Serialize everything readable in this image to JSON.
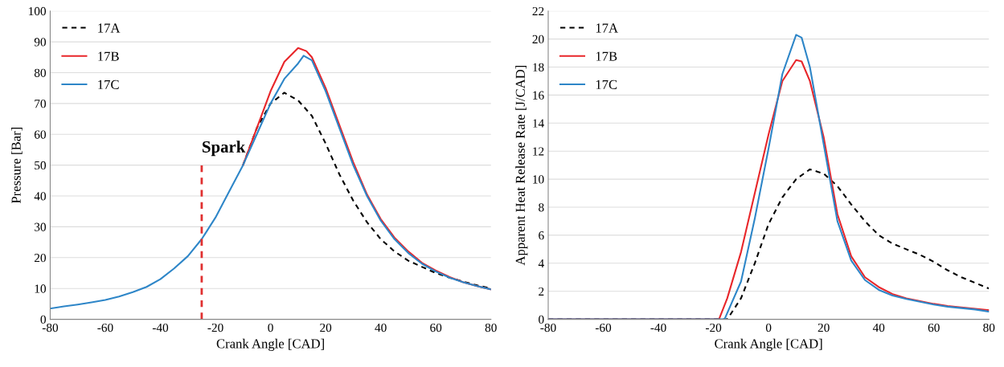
{
  "chart_data": [
    {
      "type": "line",
      "xlabel": "Crank Angle [CAD]",
      "ylabel": "Pressure [Bar]",
      "xlim": [
        -80,
        80
      ],
      "xticks": [
        -80,
        -60,
        -40,
        -20,
        0,
        20,
        40,
        60,
        80
      ],
      "ylim": [
        0,
        100
      ],
      "yticks": [
        0,
        10,
        20,
        30,
        40,
        50,
        60,
        70,
        80,
        90,
        100
      ],
      "grid": "y",
      "legend": "top left",
      "series": [
        {
          "name": "17A",
          "color": "#000000",
          "line_style": "dashed",
          "x": [
            -10,
            -5,
            0,
            5,
            10,
            15,
            20,
            25,
            30,
            35,
            40,
            45,
            50,
            55,
            60,
            65,
            70,
            75,
            80
          ],
          "values": [
            50,
            62,
            70,
            73.5,
            71,
            66,
            57,
            47,
            38.5,
            31.5,
            26,
            22,
            19,
            17,
            15,
            13.5,
            12.2,
            11,
            10
          ]
        },
        {
          "name": "17B",
          "color": "#e8262a",
          "line_style": "solid",
          "x": [
            -10,
            -5,
            0,
            5,
            10,
            13,
            15,
            20,
            25,
            30,
            35,
            40,
            45,
            50,
            55,
            60,
            65,
            70,
            75,
            80
          ],
          "values": [
            50,
            62,
            74,
            83.5,
            88,
            87,
            85,
            75,
            63,
            51,
            40.5,
            32.5,
            26.5,
            22,
            18.3,
            15.8,
            13.7,
            12,
            10.8,
            9.7
          ]
        },
        {
          "name": "17C",
          "color": "#2e86c8",
          "line_style": "solid",
          "x": [
            -80,
            -75,
            -70,
            -65,
            -60,
            -55,
            -50,
            -45,
            -40,
            -35,
            -30,
            -25,
            -20,
            -15,
            -10,
            -5,
            0,
            5,
            10,
            12,
            15,
            20,
            25,
            30,
            35,
            40,
            45,
            50,
            55,
            60,
            65,
            70,
            75,
            80
          ],
          "values": [
            3.5,
            4.2,
            4.8,
            5.5,
            6.3,
            7.4,
            8.8,
            10.5,
            13,
            16.5,
            20.5,
            26,
            33,
            41.5,
            50,
            60,
            70,
            78,
            83,
            85.5,
            84,
            74,
            62,
            50,
            40,
            32,
            26,
            21.5,
            18,
            15.5,
            13.5,
            12,
            10.8,
            9.7
          ]
        }
      ],
      "ref_lines": [
        {
          "axis": "x",
          "value": -25,
          "label": "Spark",
          "color": "#e03030",
          "line_style": "dashed"
        }
      ]
    },
    {
      "type": "line",
      "xlabel": "Crank Angle [CAD]",
      "ylabel": "Apparent Heat Release Rate [J/CAD]",
      "xlim": [
        -80,
        80
      ],
      "xticks": [
        -80,
        -60,
        -40,
        -20,
        0,
        20,
        40,
        60,
        80
      ],
      "ylim": [
        0,
        22
      ],
      "yticks": [
        0,
        2,
        4,
        6,
        8,
        10,
        12,
        14,
        16,
        18,
        20,
        22
      ],
      "grid": "y",
      "legend": "top left",
      "series": [
        {
          "name": "17A",
          "color": "#000000",
          "line_style": "dashed",
          "x": [
            -80,
            -15,
            -10,
            -5,
            0,
            5,
            10,
            15,
            20,
            25,
            30,
            35,
            40,
            45,
            50,
            55,
            60,
            65,
            70,
            75,
            80
          ],
          "values": [
            0,
            0,
            1.5,
            4,
            6.8,
            8.7,
            10,
            10.7,
            10.4,
            9.5,
            8.2,
            7,
            6,
            5.4,
            5,
            4.6,
            4.1,
            3.5,
            3,
            2.6,
            2.2
          ]
        },
        {
          "name": "17B",
          "color": "#e8262a",
          "line_style": "solid",
          "x": [
            -80,
            -18,
            -15,
            -10,
            -5,
            0,
            5,
            10,
            12,
            15,
            20,
            25,
            30,
            35,
            40,
            45,
            50,
            55,
            60,
            65,
            70,
            75,
            80
          ],
          "values": [
            0,
            0,
            1.5,
            4.8,
            9,
            13.2,
            17,
            18.5,
            18.4,
            17,
            13,
            7.5,
            4.5,
            3,
            2.3,
            1.8,
            1.5,
            1.3,
            1.1,
            0.95,
            0.85,
            0.75,
            0.65
          ]
        },
        {
          "name": "17C",
          "color": "#2e86c8",
          "line_style": "solid",
          "x": [
            -80,
            -16,
            -10,
            -5,
            0,
            5,
            10,
            12,
            15,
            20,
            25,
            30,
            35,
            40,
            45,
            50,
            55,
            60,
            65,
            70,
            75,
            80
          ],
          "values": [
            0,
            0,
            2.7,
            7.2,
            12.2,
            17.5,
            20.3,
            20.1,
            18,
            12.5,
            7,
            4.2,
            2.8,
            2.1,
            1.7,
            1.45,
            1.25,
            1.05,
            0.9,
            0.8,
            0.7,
            0.55
          ]
        }
      ]
    }
  ]
}
